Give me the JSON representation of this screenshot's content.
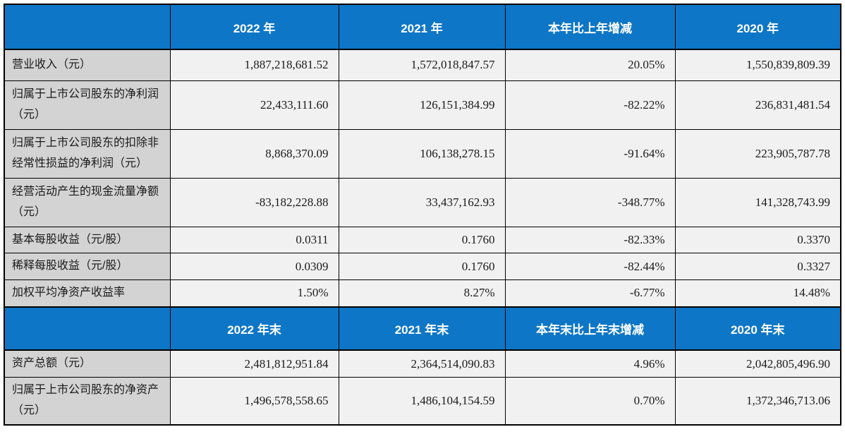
{
  "colors": {
    "header_blue": "#0e76c6",
    "label_gray": "#d3d3d3",
    "value_cell_gray": "#f1f1f1",
    "border": "#000000",
    "header_text": "#ffffff"
  },
  "table": {
    "section1": {
      "headers": {
        "col0": "",
        "col1": "2022 年",
        "col2": "2021 年",
        "col3": "本年比上年增减",
        "col4": "2020 年"
      },
      "rows": [
        {
          "label": "营业收入（元）",
          "v1": "1,887,218,681.52",
          "v2": "1,572,018,847.57",
          "v3": "20.05%",
          "v4": "1,550,839,809.39"
        },
        {
          "label": "归属于上市公司股东的净利润（元）",
          "v1": "22,433,111.60",
          "v2": "126,151,384.99",
          "v3": "-82.22%",
          "v4": "236,831,481.54"
        },
        {
          "label": "归属于上市公司股东的扣除非经常性损益的净利润（元）",
          "v1": "8,868,370.09",
          "v2": "106,138,278.15",
          "v3": "-91.64%",
          "v4": "223,905,787.78"
        },
        {
          "label": "经营活动产生的现金流量净额（元）",
          "v1": "-83,182,228.88",
          "v2": "33,437,162.93",
          "v3": "-348.77%",
          "v4": "141,328,743.99"
        },
        {
          "label": "基本每股收益（元/股）",
          "v1": "0.0311",
          "v2": "0.1760",
          "v3": "-82.33%",
          "v4": "0.3370"
        },
        {
          "label": "稀释每股收益（元/股）",
          "v1": "0.0309",
          "v2": "0.1760",
          "v3": "-82.44%",
          "v4": "0.3327"
        },
        {
          "label": "加权平均净资产收益率",
          "v1": "1.50%",
          "v2": "8.27%",
          "v3": "-6.77%",
          "v4": "14.48%"
        }
      ]
    },
    "section2": {
      "headers": {
        "col0": "",
        "col1": "2022 年末",
        "col2": "2021 年末",
        "col3": "本年末比上年末增减",
        "col4": "2020 年末"
      },
      "rows": [
        {
          "label": "资产总额（元）",
          "v1": "2,481,812,951.84",
          "v2": "2,364,514,090.83",
          "v3": "4.96%",
          "v4": "2,042,805,496.90"
        },
        {
          "label": "归属于上市公司股东的净资产（元）",
          "v1": "1,496,578,558.65",
          "v2": "1,486,104,154.59",
          "v3": "0.70%",
          "v4": "1,372,346,713.06"
        }
      ]
    }
  }
}
